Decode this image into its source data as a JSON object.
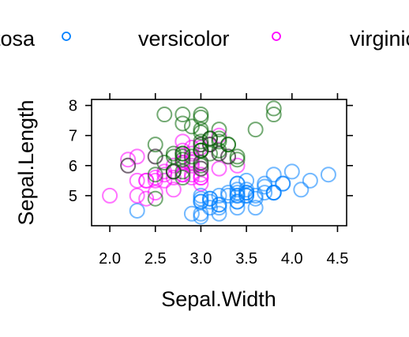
{
  "chart_data": {
    "type": "scatter",
    "xlabel": "Sepal.Width",
    "ylabel": "Sepal.Length",
    "xlim": [
      1.8,
      4.6
    ],
    "ylim": [
      4.0,
      8.2
    ],
    "x_ticks": [
      2.0,
      2.5,
      3.0,
      3.5,
      4.0,
      4.5
    ],
    "x_tick_labels": [
      "2.0",
      "2.5",
      "3.0",
      "3.5",
      "4.0",
      "4.5"
    ],
    "y_ticks": [
      5,
      6,
      7,
      8
    ],
    "y_tick_labels": [
      "5",
      "6",
      "7",
      "8"
    ],
    "legend": {
      "placement": "top",
      "entries": [
        {
          "label": "setosa",
          "color": "#0080ff"
        },
        {
          "label": "versicolor",
          "color": "#ff00ff"
        },
        {
          "label": "virginica",
          "color": "#006400"
        }
      ]
    },
    "series": [
      {
        "name": "setosa",
        "color": "#0080ff",
        "points": [
          [
            3.5,
            5.1
          ],
          [
            3.0,
            4.9
          ],
          [
            3.2,
            4.7
          ],
          [
            3.1,
            4.6
          ],
          [
            3.6,
            5.0
          ],
          [
            3.9,
            5.4
          ],
          [
            3.4,
            4.6
          ],
          [
            3.4,
            5.0
          ],
          [
            2.9,
            4.4
          ],
          [
            3.1,
            4.9
          ],
          [
            3.7,
            5.4
          ],
          [
            3.4,
            4.8
          ],
          [
            3.0,
            4.8
          ],
          [
            3.0,
            4.3
          ],
          [
            4.0,
            5.8
          ],
          [
            4.4,
            5.7
          ],
          [
            3.9,
            5.4
          ],
          [
            3.5,
            5.1
          ],
          [
            3.8,
            5.7
          ],
          [
            3.8,
            5.1
          ],
          [
            3.4,
            5.4
          ],
          [
            3.7,
            5.1
          ],
          [
            3.6,
            4.6
          ],
          [
            3.3,
            5.1
          ],
          [
            3.4,
            4.8
          ],
          [
            3.0,
            5.0
          ],
          [
            3.4,
            5.0
          ],
          [
            3.5,
            5.2
          ],
          [
            3.4,
            5.2
          ],
          [
            3.2,
            4.7
          ],
          [
            3.1,
            4.8
          ],
          [
            3.4,
            5.4
          ],
          [
            4.1,
            5.2
          ],
          [
            4.2,
            5.5
          ],
          [
            3.1,
            4.9
          ],
          [
            3.2,
            5.0
          ],
          [
            3.5,
            5.5
          ],
          [
            3.6,
            4.9
          ],
          [
            3.0,
            4.4
          ],
          [
            3.4,
            5.1
          ],
          [
            3.5,
            5.0
          ],
          [
            2.3,
            4.5
          ],
          [
            3.2,
            4.4
          ],
          [
            3.5,
            5.0
          ],
          [
            3.8,
            5.1
          ],
          [
            3.0,
            4.8
          ],
          [
            3.8,
            5.1
          ],
          [
            3.2,
            4.6
          ],
          [
            3.7,
            5.3
          ],
          [
            3.3,
            5.0
          ]
        ]
      },
      {
        "name": "versicolor",
        "color": "#ff00ff",
        "points": [
          [
            3.2,
            7.0
          ],
          [
            3.2,
            6.4
          ],
          [
            3.1,
            6.9
          ],
          [
            2.3,
            5.5
          ],
          [
            2.8,
            6.5
          ],
          [
            2.8,
            5.7
          ],
          [
            3.3,
            6.3
          ],
          [
            2.4,
            4.9
          ],
          [
            2.9,
            6.6
          ],
          [
            2.7,
            5.2
          ],
          [
            2.0,
            5.0
          ],
          [
            3.0,
            5.9
          ],
          [
            2.2,
            6.0
          ],
          [
            2.9,
            6.1
          ],
          [
            2.9,
            5.6
          ],
          [
            3.1,
            6.7
          ],
          [
            3.0,
            5.6
          ],
          [
            2.7,
            5.8
          ],
          [
            2.2,
            6.2
          ],
          [
            2.5,
            5.6
          ],
          [
            3.2,
            5.9
          ],
          [
            2.8,
            6.1
          ],
          [
            2.5,
            6.3
          ],
          [
            2.8,
            6.1
          ],
          [
            2.9,
            6.4
          ],
          [
            3.0,
            6.6
          ],
          [
            2.8,
            6.8
          ],
          [
            3.0,
            6.7
          ],
          [
            2.9,
            6.0
          ],
          [
            2.6,
            5.7
          ],
          [
            2.4,
            5.5
          ],
          [
            2.4,
            5.5
          ],
          [
            2.7,
            5.8
          ],
          [
            2.7,
            6.0
          ],
          [
            3.0,
            5.4
          ],
          [
            3.4,
            6.0
          ],
          [
            3.1,
            6.7
          ],
          [
            2.3,
            6.3
          ],
          [
            3.0,
            5.6
          ],
          [
            2.5,
            5.5
          ],
          [
            2.6,
            5.5
          ],
          [
            3.0,
            6.1
          ],
          [
            2.6,
            5.8
          ],
          [
            2.3,
            5.0
          ],
          [
            2.7,
            5.6
          ],
          [
            3.0,
            5.7
          ],
          [
            2.9,
            5.7
          ],
          [
            2.9,
            6.2
          ],
          [
            2.5,
            5.1
          ],
          [
            2.8,
            5.7
          ]
        ]
      },
      {
        "name": "virginica",
        "color": "#006400",
        "points": [
          [
            3.3,
            6.3
          ],
          [
            2.7,
            5.8
          ],
          [
            3.0,
            7.1
          ],
          [
            2.9,
            6.3
          ],
          [
            3.0,
            6.5
          ],
          [
            3.0,
            7.6
          ],
          [
            2.5,
            4.9
          ],
          [
            2.9,
            7.3
          ],
          [
            2.5,
            6.7
          ],
          [
            3.6,
            7.2
          ],
          [
            3.2,
            6.5
          ],
          [
            2.7,
            6.4
          ],
          [
            3.0,
            6.8
          ],
          [
            2.5,
            5.7
          ],
          [
            2.8,
            5.8
          ],
          [
            3.2,
            6.4
          ],
          [
            3.0,
            6.5
          ],
          [
            3.8,
            7.7
          ],
          [
            2.6,
            7.7
          ],
          [
            2.2,
            6.0
          ],
          [
            3.2,
            6.9
          ],
          [
            2.8,
            5.6
          ],
          [
            2.8,
            7.7
          ],
          [
            2.7,
            6.3
          ],
          [
            3.3,
            6.7
          ],
          [
            3.2,
            7.2
          ],
          [
            2.8,
            6.2
          ],
          [
            3.0,
            6.1
          ],
          [
            2.8,
            6.4
          ],
          [
            3.0,
            7.2
          ],
          [
            2.8,
            7.4
          ],
          [
            3.8,
            7.9
          ],
          [
            2.8,
            6.4
          ],
          [
            2.8,
            6.3
          ],
          [
            2.6,
            6.1
          ],
          [
            3.0,
            7.7
          ],
          [
            3.4,
            6.3
          ],
          [
            3.1,
            6.4
          ],
          [
            3.0,
            6.0
          ],
          [
            3.1,
            6.9
          ],
          [
            3.1,
            6.7
          ],
          [
            3.1,
            6.9
          ],
          [
            2.7,
            5.8
          ],
          [
            3.2,
            6.8
          ],
          [
            3.3,
            6.7
          ],
          [
            3.0,
            6.7
          ],
          [
            2.5,
            6.3
          ],
          [
            3.0,
            6.5
          ],
          [
            3.4,
            6.2
          ],
          [
            3.0,
            5.9
          ]
        ]
      }
    ]
  }
}
